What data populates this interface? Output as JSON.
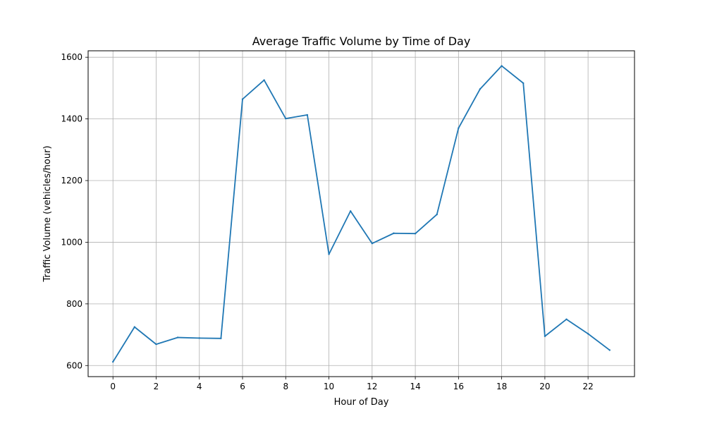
{
  "chart_data": {
    "type": "line",
    "title": "Average Traffic Volume by Time of Day",
    "xlabel": "Hour of Day",
    "ylabel": "Traffic Volume (vehicles/hour)",
    "x": [
      0,
      1,
      2,
      3,
      4,
      5,
      6,
      7,
      8,
      9,
      10,
      11,
      12,
      13,
      14,
      15,
      16,
      17,
      18,
      19,
      20,
      21,
      22,
      23
    ],
    "series": [
      {
        "values": [
          612,
          725,
          669,
          691,
          689,
          688,
          1464,
          1526,
          1401,
          1413,
          961,
          1101,
          996,
          1029,
          1028,
          1090,
          1370,
          1497,
          1572,
          1516,
          695,
          750,
          703,
          650
        ],
        "color": "#1f77b4"
      }
    ],
    "xlim": [
      -1.15,
      24.15
    ],
    "ylim": [
      564,
      1621
    ],
    "xticks": [
      0,
      2,
      4,
      6,
      8,
      10,
      12,
      14,
      16,
      18,
      20,
      22
    ],
    "yticks": [
      600,
      800,
      1000,
      1200,
      1400,
      1600
    ],
    "grid": true,
    "legend": "none"
  }
}
